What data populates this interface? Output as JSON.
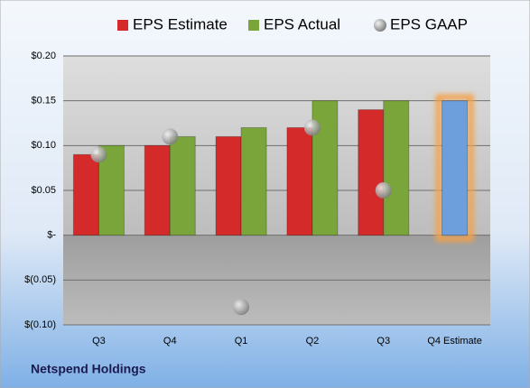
{
  "chart_data": {
    "type": "bar",
    "title": "Netspend Holdings",
    "categories": [
      "Q3",
      "Q4",
      "Q1",
      "Q2",
      "Q3",
      "Q4 Estimate"
    ],
    "series": [
      {
        "name": "EPS Estimate",
        "color": "#d42a2a",
        "values": [
          0.09,
          0.1,
          0.11,
          0.12,
          0.14,
          null
        ]
      },
      {
        "name": "EPS Actual",
        "color": "#7aa53a",
        "values": [
          0.1,
          0.11,
          0.12,
          0.15,
          0.15,
          null
        ]
      },
      {
        "name": "EPS GAAP",
        "color": "#a9a9a9",
        "marker": "circle",
        "values": [
          0.09,
          0.11,
          -0.08,
          0.12,
          0.05,
          null
        ]
      }
    ],
    "estimate_bar": {
      "value": 0.15,
      "color": "#6d9fdc",
      "glow": "#f4a14a"
    },
    "ylim": [
      -0.1,
      0.2
    ],
    "yticks": [
      {
        "value": -0.1,
        "label": "$(0.10)"
      },
      {
        "value": -0.05,
        "label": "$(0.05)"
      },
      {
        "value": 0,
        "label": "$-"
      },
      {
        "value": 0.05,
        "label": "$0.05"
      },
      {
        "value": 0.1,
        "label": "$0.10"
      },
      {
        "value": 0.15,
        "label": "$0.15"
      },
      {
        "value": 0.2,
        "label": "$0.20"
      }
    ],
    "grid": true,
    "legend": "top"
  }
}
